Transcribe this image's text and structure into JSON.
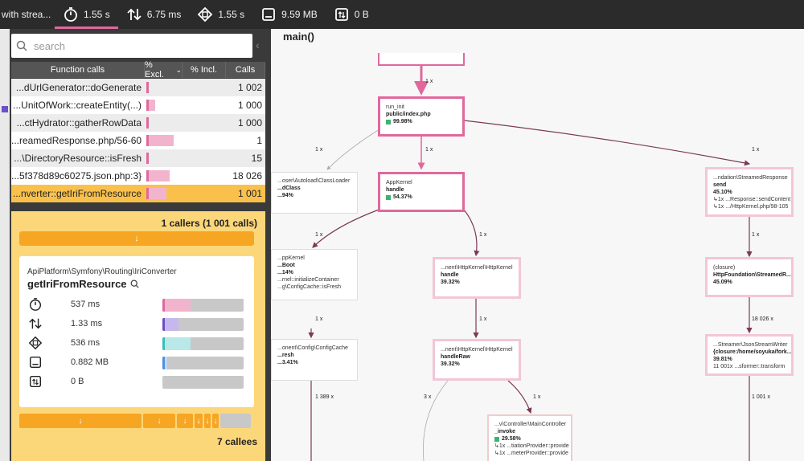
{
  "topbar": {
    "title": "with strea...",
    "metrics": [
      {
        "icon": "stopwatch-icon",
        "value": "1.55 s"
      },
      {
        "icon": "io-arrows-icon",
        "value": "6.75 ms"
      },
      {
        "icon": "cpu-icon",
        "value": "1.55 s"
      },
      {
        "icon": "memory-icon",
        "value": "9.59 MB"
      },
      {
        "icon": "network-icon",
        "value": "0 B"
      }
    ]
  },
  "search": {
    "placeholder": "search"
  },
  "table": {
    "headers": {
      "function": "Function calls",
      "excl": "% Excl.",
      "incl": "% Incl.",
      "calls": "Calls"
    },
    "rows": [
      {
        "fn": "...dUrlGenerator::doGenerate",
        "calls": "1 002",
        "excl": 0.05
      },
      {
        "fn": "...UnitOfWork::createEntity(...)",
        "calls": "1 000",
        "excl": 0.25
      },
      {
        "fn": "...ctHydrator::gatherRowData",
        "calls": "1 000",
        "excl": 0.05
      },
      {
        "fn": "...reamedResponse.php/56-60",
        "calls": "1",
        "excl": 0.8
      },
      {
        "fn": "...\\DirectoryResource::isFresh",
        "calls": "15",
        "excl": 0.05
      },
      {
        "fn": "...5f378d89c60275.json.php:3}",
        "calls": "18 026",
        "excl": 0.7
      },
      {
        "fn": "...nverter::getIriFromResource",
        "calls": "1 001",
        "excl": 0.6
      }
    ]
  },
  "detail": {
    "callers": "1 callers (1 001 calls)",
    "caller_arrow": "↓",
    "namespace": "ApiPlatform\\Symfony\\Routing\\IriConverter",
    "function": "getIriFromResource",
    "metrics": [
      {
        "icon": "stopwatch-icon",
        "value": "537 ms",
        "fraction": 0.35,
        "color": "#e0689d",
        "fill": "#f2b4cd"
      },
      {
        "icon": "io-arrows-icon",
        "value": "1.33 ms",
        "fraction": 0.2,
        "color": "#6b4fc8",
        "fill": "#c6b8ef"
      },
      {
        "icon": "cpu-icon",
        "value": "536 ms",
        "fraction": 0.35,
        "color": "#3cbcbc",
        "fill": "#b8e8e8"
      },
      {
        "icon": "memory-icon",
        "value": "0.882 MB",
        "fraction": 0.06,
        "color": "#4f8fe0",
        "fill": "#c2d8f3"
      },
      {
        "icon": "network-icon",
        "value": "0 B",
        "fraction": 0,
        "color": "#999999",
        "fill": "#c8c8c8"
      }
    ],
    "callee_arrows": [
      "↓",
      "↓",
      "↓",
      "↓",
      "↓",
      "↓"
    ],
    "callees": "7 callees"
  },
  "graph": {
    "title": "main()",
    "nodes": [
      {
        "ns": "run_init",
        "name": "public/index.php",
        "pct": "99.98%"
      },
      {
        "ns": "AppKernel",
        "name": "handle",
        "pct": "54.37%"
      },
      {
        "ns": "...ndation\\StreamedResponse",
        "name": "send",
        "pct": "45.10%",
        "sub1": "↳1x ...Response::sendContent",
        "sub2": "↳1x .../HttpKernel.php/98-105"
      },
      {
        "ns": "...oser\\Autoload\\ClassLoader",
        "name": "...dClass",
        "pct": "...94%"
      },
      {
        "ns": "...ppKernel",
        "name": "...Boot",
        "pct": "...14%",
        "sub1": "...rnel::initializeContainer",
        "sub2": "...g\\ConfigCache::isFresh"
      },
      {
        "ns": "...nent\\HttpKernel\\HttpKernel",
        "name": "handle",
        "pct": "39.32%"
      },
      {
        "ns": "(closure)",
        "name": "HttpFoundation\\StreamedR...",
        "pct": "45.09%"
      },
      {
        "ns": "...onent\\Config\\ConfigCache",
        "name": "...resh",
        "pct": "...3.41%"
      },
      {
        "ns": "...nent\\HttpKernel\\HttpKernel",
        "name": "handleRaw",
        "pct": "39.32%"
      },
      {
        "ns": "...Streamer\\JsonStreamWriter",
        "name": "{closure:/home/soyuka/fork...",
        "pct": "39.81%",
        "sub1": "11 001x ...sformer::transform"
      },
      {
        "ns": "...v\\Controller\\MainController",
        "name": "_invoke",
        "pct": "29.58%",
        "sub1": "↳1x ...tiationProvider::provide",
        "sub2": "↳1x ...meterProvider::provide"
      }
    ],
    "edges": [
      "1 x",
      "1 x",
      "1 x",
      "1 x",
      "1 x",
      "1 x",
      "1 x",
      "1 x",
      "1 x",
      "18 026 x",
      "1 389 x",
      "3 x",
      "1 x",
      "1 001 x"
    ]
  }
}
